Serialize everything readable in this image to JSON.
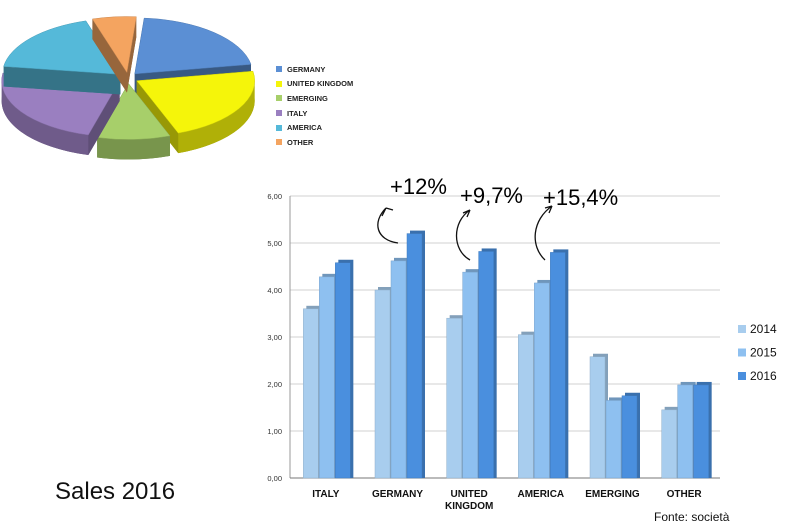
{
  "title": "Sales 2016",
  "source": "Fonte: società",
  "chart_data": [
    {
      "type": "pie",
      "slices": [
        {
          "label": "GERMANY",
          "color": "#5b8fd4",
          "value": 21
        },
        {
          "label": "UNITED KINGDOM",
          "color": "#f5f50a",
          "value": 22
        },
        {
          "label": "EMERGING",
          "color": "#a7cf6a",
          "value": 10
        },
        {
          "label": "ITALY",
          "color": "#9a7fc0",
          "value": 23
        },
        {
          "label": "AMERICA",
          "color": "#55b9d9",
          "value": 18
        },
        {
          "label": "OTHER",
          "color": "#f4a460",
          "value": 6
        }
      ]
    },
    {
      "type": "bar",
      "categories": [
        "ITALY",
        "GERMANY",
        "UNITED KINGDOM",
        "AMERICA",
        "EMERGING",
        "OTHER"
      ],
      "category_lines": [
        [
          "ITALY"
        ],
        [
          "GERMANY"
        ],
        [
          "UNITED",
          "KINGDOM"
        ],
        [
          "AMERICA"
        ],
        [
          "EMERGING"
        ],
        [
          "OTHER"
        ]
      ],
      "series": [
        {
          "name": "2014",
          "color": "#a8cdee",
          "values": [
            3.6,
            4.0,
            3.4,
            3.05,
            2.58,
            1.45
          ]
        },
        {
          "name": "2015",
          "color": "#8ec0f0",
          "values": [
            4.28,
            4.62,
            4.38,
            4.15,
            1.65,
            1.98
          ]
        },
        {
          "name": "2016",
          "color": "#4a8fde",
          "values": [
            4.58,
            5.2,
            4.82,
            4.8,
            1.75,
            1.98
          ]
        }
      ],
      "yticks": [
        "0,00",
        "1,00",
        "2,00",
        "3,00",
        "4,00",
        "5,00",
        "6,00"
      ],
      "ylim": [
        0,
        6
      ],
      "grid": true,
      "legend": "right",
      "annotations": [
        "+12%",
        "+9,7%",
        "+15,4%"
      ]
    }
  ]
}
